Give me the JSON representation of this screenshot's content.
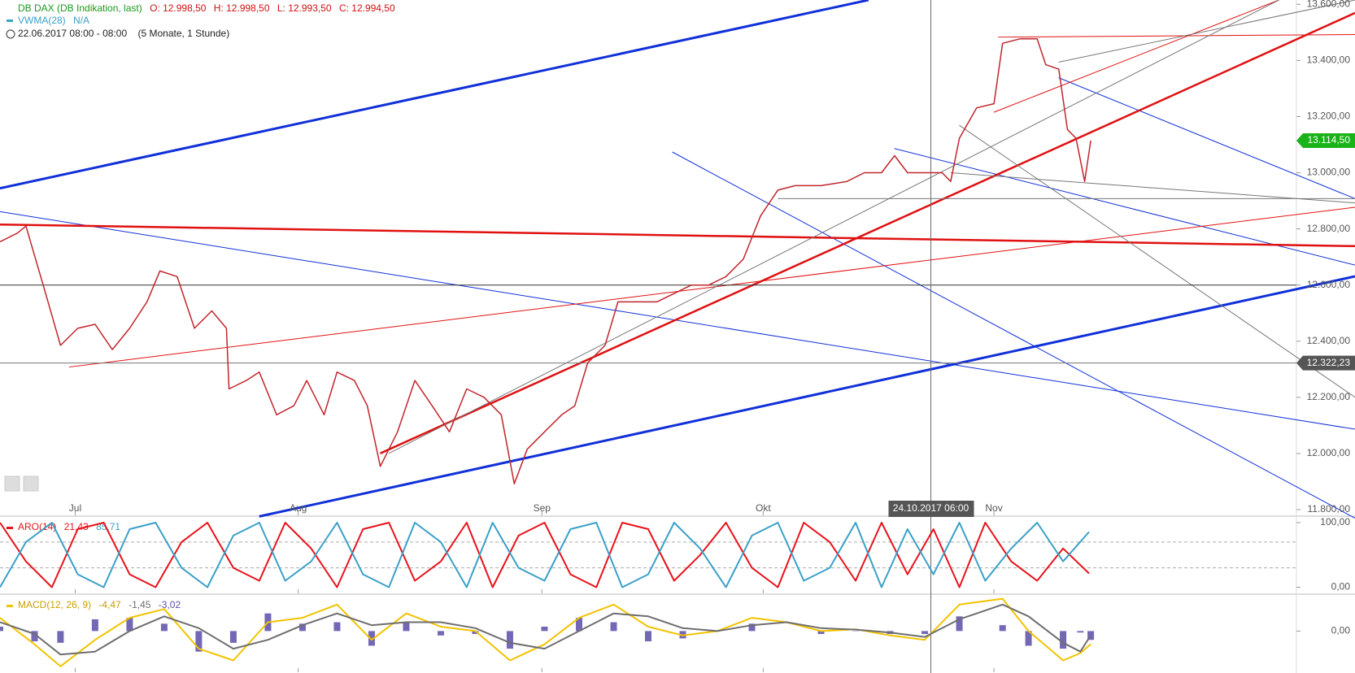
{
  "chart_data": [
    {
      "type": "line",
      "title": "DB DAX (DB Indikation, last)",
      "ohlc_labels": [
        "O: 12.998,50",
        "H: 12.998,50",
        "L: 12.993,50",
        "C: 12.994,50"
      ],
      "indicator": "VWMA(28)",
      "indicator_value": "N/A",
      "period": "22.06.2017 08:00 - 08:00",
      "range": "(5 Monate, 1 Stunde)",
      "x": [
        0,
        2,
        3,
        5,
        7,
        9,
        11,
        13,
        15,
        17,
        18.5,
        20.5,
        22.5,
        24.5,
        26.2,
        26.5,
        28.5,
        30,
        32,
        34,
        35.5,
        37.5,
        39,
        41,
        42.5,
        44,
        46,
        48,
        50,
        52,
        54,
        56,
        58,
        59.5,
        61,
        63,
        65,
        66.5,
        68,
        70,
        71.5,
        74,
        76,
        78,
        80,
        82,
        84,
        86,
        88,
        90,
        92,
        95,
        98,
        100,
        102,
        103.5,
        105,
        107,
        109,
        110,
        111,
        113,
        115,
        116,
        118,
        120,
        121,
        122.5,
        123.5,
        124.5,
        125.5,
        126.2
      ],
      "series": [
        {
          "color": "#c0262c",
          "values": [
            12754,
            12785,
            12810,
            12600,
            12385,
            12446,
            12460,
            12370,
            12446,
            12540,
            12650,
            12630,
            12446,
            12508,
            12446,
            12230,
            12260,
            12290,
            12138,
            12170,
            12260,
            12138,
            12290,
            12260,
            12170,
            11954,
            12077,
            12260,
            12170,
            12077,
            12230,
            12200,
            12138,
            11892,
            12015,
            12077,
            12138,
            12170,
            12323,
            12385,
            12540,
            12540,
            12540,
            12570,
            12600,
            12600,
            12630,
            12692,
            12846,
            12938,
            12954,
            12954,
            12969,
            13000,
            13000,
            13061,
            13000,
            13000,
            13000,
            12969,
            13123,
            13231,
            13246,
            13461,
            13477,
            13477,
            13385,
            13369,
            13154,
            13123,
            12969,
            13114.5
          ]
        }
      ],
      "xlim": [
        0,
        150
      ],
      "xticks": [
        {
          "value": 8.7,
          "label": "Jul"
        },
        {
          "value": 34.5,
          "label": "Aug"
        },
        {
          "value": 62.7,
          "label": "Sep"
        },
        {
          "value": 88.3,
          "label": "Okt"
        },
        {
          "value": 115,
          "label": "Nov"
        }
      ],
      "ylim": [
        11800,
        13600
      ],
      "yticks": [
        {
          "value": 11800,
          "label": "11.800,00"
        },
        {
          "value": 12000,
          "label": "12.000,00"
        },
        {
          "value": 12200,
          "label": "12.200,00"
        },
        {
          "value": 12400,
          "label": "12.400,00"
        },
        {
          "value": 12600,
          "label": "12.600,00"
        },
        {
          "value": 12800,
          "label": "12.800,00"
        },
        {
          "value": 13000,
          "label": "13.000,00"
        },
        {
          "value": 13200,
          "label": "13.200,00"
        },
        {
          "value": 13400,
          "label": "13.400,00"
        },
        {
          "value": 13600,
          "label": "13.600,00"
        }
      ],
      "last_price": {
        "value": 13114.5,
        "label": "13.114,50"
      },
      "hlines": [
        12600,
        {
          "value": 12322.23,
          "label": "12.322,23"
        }
      ],
      "crosshair": {
        "value": 107.7,
        "label": "24.10.2017 06:00"
      }
    },
    {
      "type": "line",
      "title": "ARO(14)",
      "legend_values": [
        "21,43",
        "85,71"
      ],
      "x": [
        0,
        3,
        6,
        9,
        12,
        15,
        18,
        21,
        24,
        27,
        30,
        33,
        36,
        39,
        42,
        45,
        48,
        51,
        54,
        57,
        60,
        63,
        66,
        69,
        72,
        75,
        78,
        81,
        84,
        87,
        90,
        93,
        96,
        99,
        102,
        105,
        108,
        111,
        114,
        117,
        120,
        123,
        126
      ],
      "series": [
        {
          "color": "#e8121a",
          "values": [
            100,
            40,
            0,
            90,
            100,
            20,
            0,
            70,
            100,
            30,
            10,
            100,
            60,
            0,
            90,
            100,
            10,
            40,
            100,
            0,
            80,
            100,
            20,
            0,
            100,
            90,
            10,
            50,
            100,
            30,
            0,
            100,
            70,
            10,
            100,
            20,
            90,
            0,
            100,
            40,
            10,
            60,
            21.43
          ]
        },
        {
          "color": "#3aa0c8",
          "values": [
            0,
            70,
            100,
            20,
            0,
            90,
            100,
            30,
            0,
            80,
            100,
            10,
            40,
            100,
            20,
            0,
            100,
            70,
            0,
            100,
            30,
            10,
            90,
            100,
            0,
            20,
            100,
            60,
            0,
            80,
            100,
            10,
            30,
            100,
            0,
            90,
            20,
            100,
            10,
            60,
            100,
            40,
            85.71
          ]
        }
      ],
      "xlim": [
        0,
        150
      ],
      "ylim": [
        0,
        100
      ],
      "yticks": [
        {
          "value": 0,
          "label": "0,00"
        },
        {
          "value": 100,
          "label": "100,00"
        }
      ],
      "levels": [
        30,
        70
      ]
    },
    {
      "type": "line",
      "title": "MACD(12, 26, 9)",
      "legend_values": [
        "-4,47",
        "-1,45",
        "-3,02"
      ],
      "x": [
        0,
        4,
        7,
        11,
        15,
        19,
        23,
        27,
        31,
        35,
        39,
        43,
        47,
        51,
        55,
        59,
        63,
        67,
        71,
        75,
        79,
        83,
        87,
        91,
        95,
        99,
        103,
        107,
        111,
        116,
        119,
        123,
        125,
        126.2
      ],
      "series": [
        {
          "color": "#f2c300",
          "values": [
            4.5,
            -4.5,
            -12,
            -3,
            4.5,
            7.5,
            -6,
            -10,
            3,
            4.5,
            9,
            -3,
            6,
            1.5,
            0,
            -10,
            -4.5,
            4.5,
            9,
            1.5,
            -1.5,
            0,
            4.5,
            3,
            0,
            0.6,
            -1.5,
            -3,
            9,
            11,
            0,
            -10,
            -7.5,
            -4.47
          ]
        },
        {
          "color": "#6e6e6e",
          "values": [
            3,
            -1,
            -8,
            -7,
            0,
            5,
            1,
            -6,
            -3,
            2,
            6,
            2,
            3,
            3,
            1,
            -4,
            -6,
            0,
            6,
            5,
            1,
            0,
            2,
            3,
            1,
            0.5,
            -0.5,
            -2,
            4,
            9,
            5,
            -4,
            -7,
            -1.45
          ]
        }
      ],
      "histogram": {
        "color": "#5b4ea8",
        "values": [
          1.5,
          -3.5,
          -4,
          4,
          4.5,
          2.5,
          -7,
          -4,
          6,
          2.5,
          3,
          -5,
          3,
          -1.5,
          -1,
          -6,
          1.5,
          4.5,
          3,
          -3.5,
          -2.5,
          0,
          2.5,
          0,
          -1,
          0.1,
          -1,
          -1,
          5,
          2,
          -5,
          -6,
          -0.5,
          -3.02
        ]
      },
      "xlim": [
        0,
        150
      ],
      "ylim": [
        -14,
        12
      ],
      "yticks": [
        {
          "value": 0,
          "label": "0,00"
        }
      ]
    }
  ]
}
